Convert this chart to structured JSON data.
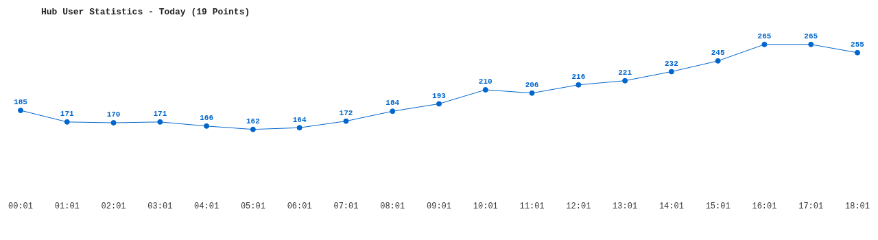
{
  "chart_data": {
    "type": "line",
    "title": "Hub User Statistics - Today (19 Points)",
    "categories": [
      "00:01",
      "01:01",
      "02:01",
      "03:01",
      "04:01",
      "05:01",
      "06:01",
      "07:01",
      "08:01",
      "09:01",
      "10:01",
      "11:01",
      "12:01",
      "13:01",
      "14:01",
      "15:01",
      "16:01",
      "17:01",
      "18:01"
    ],
    "values": [
      185,
      171,
      170,
      171,
      166,
      162,
      164,
      172,
      184,
      193,
      210,
      206,
      216,
      221,
      232,
      245,
      265,
      265,
      255
    ],
    "color": "#0066cc",
    "marker": "circle",
    "data_labels": true,
    "grid": false,
    "legend": false
  }
}
